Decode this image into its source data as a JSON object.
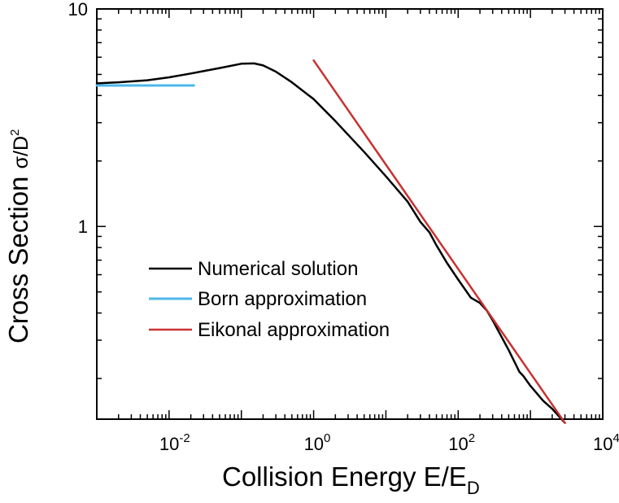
{
  "chart_data": {
    "type": "line",
    "title": "",
    "x_scale": "log",
    "y_scale": "log",
    "xlim": [
      0.001,
      10000
    ],
    "ylim": [
      0.13,
      10
    ],
    "xlabel": {
      "main": "Collision Energy E/E",
      "subscript": "D"
    },
    "ylabel": {
      "main": "Cross Section ",
      "symbol": "σ/D",
      "superscript": "2"
    },
    "x_ticks": [
      {
        "value": 0.01,
        "base": "10",
        "exp": "-2"
      },
      {
        "value": 1,
        "base": "10",
        "exp": "0"
      },
      {
        "value": 100,
        "base": "10",
        "exp": "2"
      },
      {
        "value": 10000,
        "base": "10",
        "exp": "4"
      }
    ],
    "y_ticks": [
      {
        "value": 1,
        "label": "1"
      },
      {
        "value": 10,
        "label": "10"
      }
    ],
    "legend_position": "lower-left",
    "series": [
      {
        "name": "Numerical solution",
        "color": "#000000",
        "x": [
          0.001,
          0.002,
          0.005,
          0.01,
          0.02,
          0.05,
          0.1,
          0.15,
          0.2,
          0.3,
          0.5,
          1,
          2,
          5,
          10,
          20,
          30,
          40,
          50,
          70,
          100,
          150,
          200,
          250,
          300,
          500,
          700,
          800,
          1000,
          1500,
          2000,
          3000
        ],
        "y": [
          4.55,
          4.6,
          4.7,
          4.85,
          5.05,
          5.35,
          5.6,
          5.62,
          5.5,
          5.15,
          4.6,
          3.85,
          3.05,
          2.2,
          1.7,
          1.3,
          1.05,
          0.94,
          0.82,
          0.68,
          0.57,
          0.47,
          0.445,
          0.41,
          0.37,
          0.27,
          0.215,
          0.205,
          0.185,
          0.158,
          0.145,
          0.125
        ]
      },
      {
        "name": "Born approximation",
        "color": "#4db8e8",
        "x": [
          0.001,
          0.022
        ],
        "y": [
          4.45,
          4.45
        ]
      },
      {
        "name": "Eikonal approximation",
        "color": "#c83232",
        "x": [
          1,
          3000
        ],
        "y": [
          5.8,
          0.125
        ]
      }
    ]
  }
}
